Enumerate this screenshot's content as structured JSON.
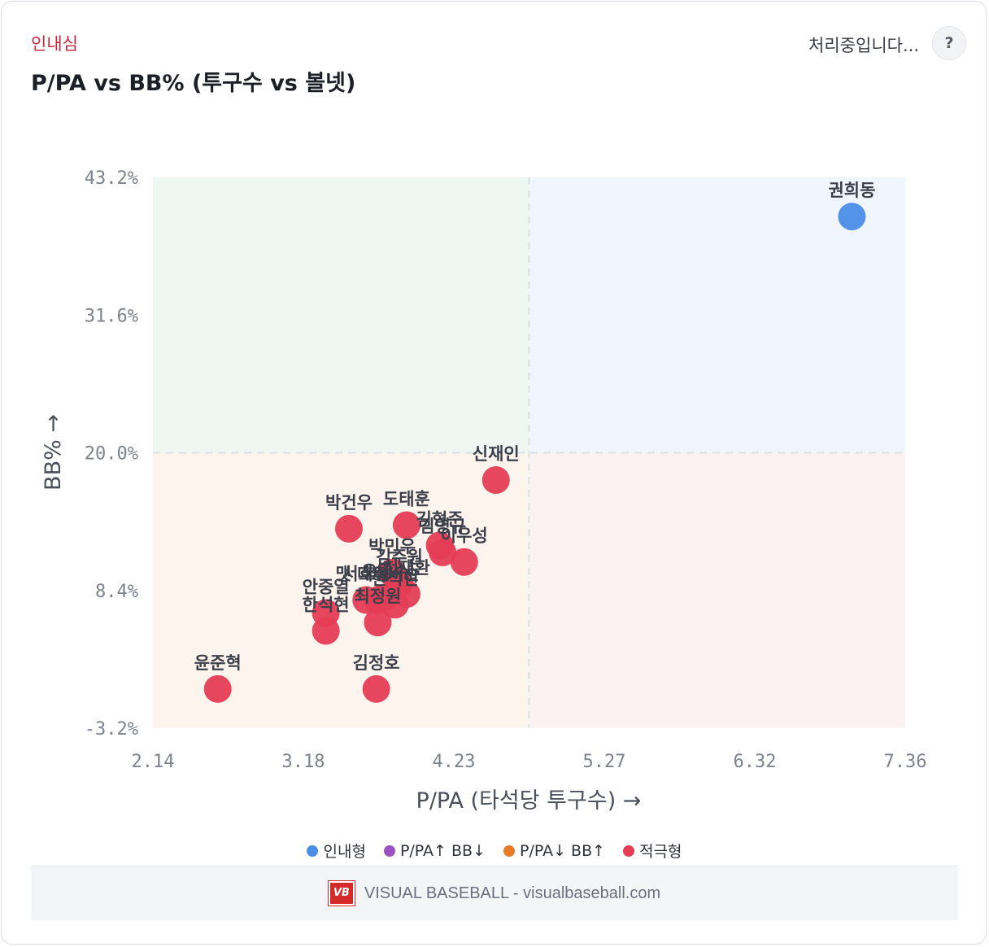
{
  "header": {
    "subtitle": "인내심",
    "title": "P/PA vs BB% (투구수 vs 볼넷)",
    "status": "처리중입니다...",
    "help_label": "?"
  },
  "chart_data": {
    "type": "scatter",
    "xlabel": "P/PA (타석당 투구수) →",
    "ylabel": "BB% →",
    "xlim": [
      2.14,
      7.36
    ],
    "ylim": [
      -3.2,
      43.2
    ],
    "x_ticks": [
      "2.14",
      "3.18",
      "4.23",
      "5.27",
      "6.32",
      "7.36"
    ],
    "y_ticks": [
      "43.2%",
      "31.6%",
      "20.0%",
      "8.4%",
      "-3.2%"
    ],
    "x_threshold": 4.75,
    "y_threshold": 20.0,
    "quadrant_colors": {
      "top_left": "#eef7f1",
      "top_right": "#f1f5fe",
      "bottom_left": "#fdf4ee",
      "bottom_right": "#fdf2f2"
    },
    "series": [
      {
        "name": "인내형",
        "color": "#4a8ee8",
        "points": [
          {
            "label": "권희동",
            "x": 6.99,
            "y": 39.9
          }
        ]
      },
      {
        "name": "P/PA↑ BB↓",
        "color": "#9b51c0",
        "points": []
      },
      {
        "name": "P/PA↓ BB↑",
        "color": "#e87b26",
        "points": []
      },
      {
        "name": "적극형",
        "color": "#e53d55",
        "points": [
          {
            "label": "신재인",
            "x": 4.52,
            "y": 17.7
          },
          {
            "label": "박건우",
            "x": 3.5,
            "y": 13.6
          },
          {
            "label": "도태훈",
            "x": 3.9,
            "y": 13.9
          },
          {
            "label": "김형준",
            "x": 4.13,
            "y": 12.2
          },
          {
            "label": "김영규",
            "x": 4.15,
            "y": 11.6
          },
          {
            "label": "이우성",
            "x": 4.3,
            "y": 10.8
          },
          {
            "label": "박민우",
            "x": 3.8,
            "y": 9.9
          },
          {
            "label": "김주원",
            "x": 3.85,
            "y": 9.0
          },
          {
            "label": "천재환",
            "x": 3.9,
            "y": 8.1
          },
          {
            "label": "서호철",
            "x": 3.62,
            "y": 7.6
          },
          {
            "label": "오영수",
            "x": 3.75,
            "y": 7.8
          },
          {
            "label": "맷 데이비슨",
            "x": 3.7,
            "y": 7.6
          },
          {
            "label": "한석현",
            "x": 3.82,
            "y": 7.2
          },
          {
            "label": "안중열",
            "x": 3.34,
            "y": 6.5
          },
          {
            "label": "한석현",
            "x": 3.34,
            "y": 5.0
          },
          {
            "label": "최정원",
            "x": 3.7,
            "y": 5.7
          },
          {
            "label": "윤준혁",
            "x": 2.59,
            "y": 0.1
          },
          {
            "label": "김정호",
            "x": 3.69,
            "y": 0.1
          }
        ]
      }
    ]
  },
  "legend": [
    {
      "label": "인내형",
      "color": "#4a8ee8"
    },
    {
      "label": "P/PA↑ BB↓",
      "color": "#9b51c0"
    },
    {
      "label": "P/PA↓ BB↑",
      "color": "#e87b26"
    },
    {
      "label": "적극형",
      "color": "#e53d55"
    }
  ],
  "footer": {
    "logo_text": "VB",
    "text": "VISUAL BASEBALL - visualbaseball.com"
  }
}
